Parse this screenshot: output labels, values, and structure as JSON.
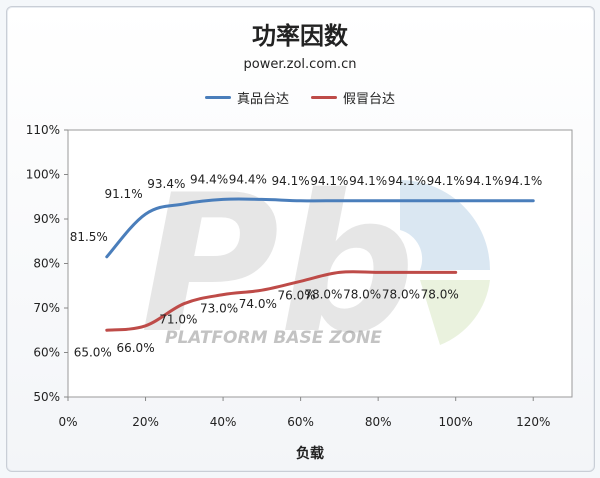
{
  "chart_data": {
    "type": "line",
    "title": "功率因数",
    "subtitle": "power.zol.com.cn",
    "xlabel": "负载",
    "ylabel": "",
    "x_ticks": [
      "0%",
      "20%",
      "40%",
      "60%",
      "80%",
      "100%",
      "120%"
    ],
    "y_ticks": [
      "50%",
      "60%",
      "70%",
      "80%",
      "90%",
      "100%",
      "110%"
    ],
    "xlim": [
      0,
      130
    ],
    "ylim": [
      50,
      110
    ],
    "legend_position": "top",
    "watermark": "PLATFORM BASE ZONE",
    "series": [
      {
        "name": "真品台达",
        "color": "#4a7ebb",
        "x": [
          10,
          20,
          30,
          40,
          50,
          60,
          70,
          80,
          90,
          100,
          110,
          120
        ],
        "y": [
          81.5,
          91.1,
          93.4,
          94.4,
          94.4,
          94.1,
          94.1,
          94.1,
          94.1,
          94.1,
          94.1,
          94.1
        ],
        "labels": [
          "81.5%",
          "91.1%",
          "93.4%",
          "94.4%",
          "94.4%",
          "94.1%",
          "94.1%",
          "94.1%",
          "94.1%",
          "94.1%",
          "94.1%",
          "94.1%"
        ]
      },
      {
        "name": "假冒台达",
        "color": "#be4b48",
        "x": [
          10,
          20,
          30,
          40,
          50,
          60,
          70,
          80,
          90,
          100
        ],
        "y": [
          65.0,
          66.0,
          71.0,
          73.0,
          74.0,
          76.0,
          78.0,
          78.0,
          78.0,
          78.0
        ],
        "labels": [
          "65.0%",
          "66.0%",
          "71.0%",
          "73.0%",
          "74.0%",
          "76.0%",
          "78.0%",
          "78.0%",
          "78.0%",
          "78.0%"
        ]
      }
    ]
  }
}
